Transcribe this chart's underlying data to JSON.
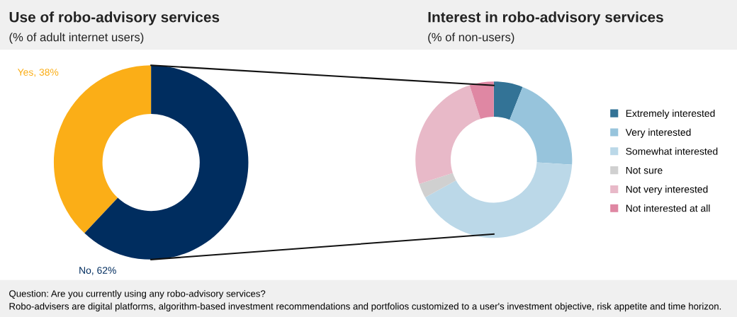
{
  "chart_data": [
    {
      "type": "donut",
      "title": "Use of robo-advisory services",
      "subtitle": "(% of adult internet users)",
      "categories": [
        "Yes",
        "No"
      ],
      "values": [
        38,
        62
      ],
      "colors": [
        "#fbae17",
        "#002d5f"
      ],
      "value_labels": [
        "38%",
        "62%"
      ],
      "legend": false,
      "annotations": [
        "Question: Are you currently using any robo-advisory services?",
        "Robo-advisers are digital platforms, algorithm-based investment recommendations and portfolios customized to a user's investment objective, risk appetite and time horizon."
      ]
    },
    {
      "type": "donut",
      "title": "Interest in robo-advisory services",
      "subtitle": "(% of non-users)",
      "categories": [
        "Extremely interested",
        "Very interested",
        "Somewhat interested",
        "Not sure",
        "Not very interested",
        "Not interested at all"
      ],
      "values": [
        6,
        20,
        41,
        3,
        25,
        5
      ],
      "colors": [
        "#337396",
        "#97c4dc",
        "#bbd8e8",
        "#d0d0d0",
        "#e8b9c8",
        "#df87a3"
      ],
      "legend": "right"
    }
  ]
}
